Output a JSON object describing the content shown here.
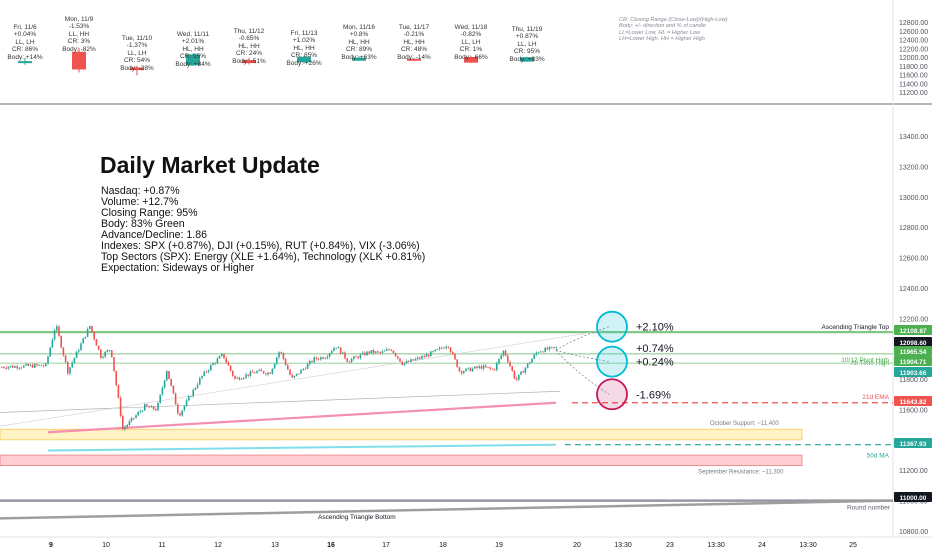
{
  "cards": [
    {
      "day": "Fri, 11/6",
      "change": "+0.04%",
      "pattern": "LL, LH",
      "cr": "CR: 86%",
      "body": "Body: +14%"
    },
    {
      "day": "Mon, 11/9",
      "change": "-1.53%",
      "pattern": "LL, HH",
      "cr": "CR: 3%",
      "body": "Body: -82%"
    },
    {
      "day": "Tue, 11/10",
      "change": "-1.37%",
      "pattern": "LL, LH",
      "cr": "CR: 54%",
      "body": "Body: -28%"
    },
    {
      "day": "Wed, 11/11",
      "change": "+2.01%",
      "pattern": "HL, HH",
      "cr": "CR: 95%",
      "body": "Body: +84%"
    },
    {
      "day": "Thu, 11/12",
      "change": "-0.65%",
      "pattern": "HL, HH",
      "cr": "CR: 24%",
      "body": "Body: -51%"
    },
    {
      "day": "Fri, 11/13",
      "change": "+1.02%",
      "pattern": "HL, HH",
      "cr": "CR: 85%",
      "body": "Body: +26%"
    },
    {
      "day": "Mon, 11/16",
      "change": "+0.8%",
      "pattern": "HL, HH",
      "cr": "CR: 89%",
      "body": "Body: +63%"
    },
    {
      "day": "Tue, 11/17",
      "change": "-0.21%",
      "pattern": "HL, HH",
      "cr": "CR: 48%",
      "body": "Body: -14%"
    },
    {
      "day": "Wed, 11/18",
      "change": "-0.82%",
      "pattern": "LL, LH",
      "cr": "CR: 1%",
      "body": "Body: -66%"
    },
    {
      "day": "Thu, 11/19",
      "change": "+0.87%",
      "pattern": "LL, LH",
      "cr": "CR: 95%",
      "body": "Body: +83%"
    }
  ],
  "legend": [
    "CR: Closing Range (Close-Low)/(High-Low)",
    "Body: +/- direction and % of candle",
    "LL=Lower Low, HL = Higher Low",
    "LH=Lower High, HH = Higher High"
  ],
  "update": {
    "title": "Daily Market Update",
    "lines": [
      "Nasdaq: +0.87%",
      "Volume: +12.7%",
      "Closing Range: 95%",
      "Body: 83% Green",
      "Advance/Decline: 1.86",
      "Indexes: SPX (+0.87%), DJI (+0.15%), RUT (+0.84%), VIX (-3.06%)",
      "Top Sectors (SPX): Energy (XLE +1.64%), Technology (XLK +0.81%)",
      "Expectation: Sideways or Higher"
    ]
  },
  "colors": {
    "up": "#26a69a",
    "down": "#ef5350",
    "ema": "#f48fb1",
    "ma50": "#80deea",
    "resistance_band": "#ffcdd2",
    "support_band": "#fff3c4",
    "triangle": "#9e9e9e",
    "circle_up": "#00bcd4",
    "circle_down": "#c2185b"
  },
  "chart_data": {
    "type": "candlestick",
    "top_panel_y_ticks": [
      12800,
      12600,
      12400,
      12200,
      12000,
      11800,
      11600,
      11400,
      11200
    ],
    "top_panel_candles": [
      {
        "day": "Fri, 11/6",
        "open": 11880,
        "high": 11985,
        "low": 11820,
        "close": 11905
      },
      {
        "day": "Mon, 11/9",
        "open": 12120,
        "high": 12210,
        "low": 11645,
        "close": 11715
      },
      {
        "day": "Tue, 11/10",
        "open": 11760,
        "high": 11800,
        "low": 11580,
        "close": 11700
      },
      {
        "day": "Wed, 11/11",
        "open": 11810,
        "high": 12080,
        "low": 11795,
        "close": 12060
      },
      {
        "day": "Thu, 11/12",
        "open": 11930,
        "high": 11985,
        "low": 11830,
        "close": 11860
      },
      {
        "day": "Fri, 11/13",
        "open": 11880,
        "high": 12030,
        "low": 11845,
        "close": 12005
      },
      {
        "day": "Mon, 11/16",
        "open": 11915,
        "high": 12025,
        "low": 11910,
        "close": 11985
      },
      {
        "day": "Tue, 11/17",
        "open": 11960,
        "high": 11975,
        "low": 11905,
        "close": 11945
      },
      {
        "day": "Wed, 11/18",
        "open": 12000,
        "high": 12030,
        "low": 11860,
        "close": 11870
      },
      {
        "day": "Thu, 11/19",
        "open": 11895,
        "high": 12005,
        "low": 11890,
        "close": 11995
      }
    ],
    "y_ticks": [
      13400,
      13200,
      13000,
      12800,
      12600,
      12400,
      12200,
      12000,
      11800,
      11600,
      11400,
      11200,
      11000,
      10800
    ],
    "x_ticks": [
      "9",
      "10",
      "11",
      "12",
      "13",
      "16",
      "17",
      "18",
      "19",
      "20",
      "13:30",
      "23",
      "13:30",
      "24",
      "13:30",
      "25"
    ],
    "bold_x_ticks": [
      "9",
      "16"
    ],
    "price_anchors": [
      {
        "day": "9",
        "open": 11890,
        "close": 12150,
        "high": 12160,
        "low": 11850
      },
      {
        "day": "10",
        "open": 11950,
        "close": 11620,
        "high": 12000,
        "low": 11470
      },
      {
        "day": "11",
        "open": 11600,
        "close": 11810,
        "high": 11860,
        "low": 11560
      },
      {
        "day": "12",
        "open": 11900,
        "close": 11850,
        "high": 11960,
        "low": 11800
      },
      {
        "day": "13",
        "open": 11840,
        "close": 11930,
        "high": 11990,
        "low": 11800
      },
      {
        "day": "16",
        "open": 11950,
        "close": 11980,
        "high": 12020,
        "low": 11920
      },
      {
        "day": "17",
        "open": 11970,
        "close": 11950,
        "high": 12000,
        "low": 11900
      },
      {
        "day": "18",
        "open": 11990,
        "close": 11880,
        "high": 12030,
        "low": 11850
      },
      {
        "day": "19",
        "open": 11860,
        "close": 11985,
        "high": 11990,
        "low": 11790
      }
    ],
    "levels": [
      {
        "label": "Ascending Triangle Top",
        "badge": "12108.87",
        "value": 12109,
        "color": "#4caf50"
      },
      {
        "label": "",
        "badge": "12098.60",
        "value": 12098.6,
        "color": "#131722"
      },
      {
        "label": "All Time High",
        "badge": "11965.54",
        "value": 11966,
        "color": "#4caf50"
      },
      {
        "label": "10/12 Pivot High",
        "badge": "11904.71",
        "value": 11904.7,
        "color": "#4caf50"
      },
      {
        "label": "",
        "badge": "11903.66",
        "value": 11903.7,
        "color": "#26a69a"
      },
      {
        "label": "21d EMA",
        "badge": "11643.82",
        "value": 11643.8,
        "color": "#ef5350"
      },
      {
        "label": "50d MA",
        "badge": "11367.93",
        "value": 11368,
        "color": "#26a69a"
      },
      {
        "label": "Round number",
        "badge": "11000.00",
        "value": 11000,
        "color": "#131722"
      }
    ],
    "zones": [
      {
        "label": "October Support: ~11,400",
        "from": 11400,
        "to": 11470
      },
      {
        "label": "September Resistance: ~11,300",
        "from": 11230,
        "to": 11300
      }
    ],
    "triangle_bottom": {
      "label": "Ascending Triangle Bottom",
      "from": 10870,
      "to": 11000
    },
    "targets": [
      {
        "label": "+2.10%",
        "value": 12145
      },
      {
        "label": "+0.74%",
        "value": 12005
      },
      {
        "label": "+0.24%",
        "value": 11915
      },
      {
        "label": "-1.69%",
        "value": 11700
      }
    ],
    "ema_21d": {
      "from": 11450,
      "to": 11644
    },
    "ma_50d": {
      "from": 11330,
      "to": 11368
    }
  }
}
